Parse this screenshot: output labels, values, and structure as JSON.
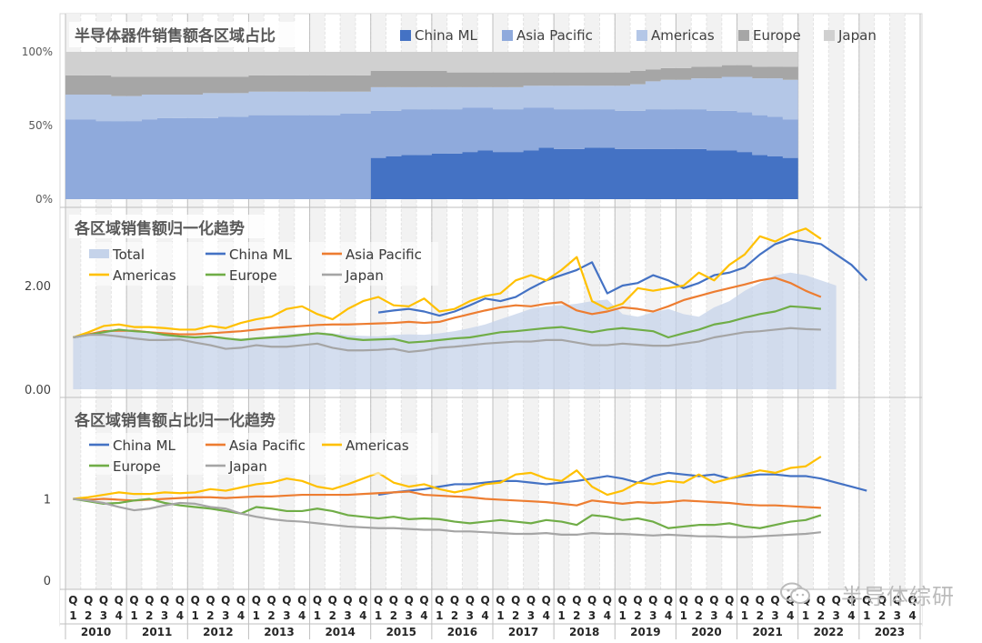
{
  "watermark": "半导体综研",
  "chart_data": [
    {
      "type": "area",
      "stacked": true,
      "percent": true,
      "title": "半导体器件销售额各区域占比",
      "yticks": [
        "0%",
        "50%",
        "100%"
      ],
      "ylim": [
        0,
        100
      ],
      "legend_position": "top-right",
      "series": [
        {
          "name": "China ML",
          "color": "#4472c4",
          "values": [
            0,
            0,
            0,
            0,
            0,
            0,
            0,
            0,
            0,
            0,
            0,
            0,
            0,
            0,
            0,
            0,
            0,
            0,
            0,
            0,
            28,
            29,
            30,
            30,
            31,
            31,
            32,
            33,
            32,
            32,
            33,
            35,
            34,
            34,
            35,
            35,
            34,
            34,
            34,
            34,
            34,
            34,
            33,
            33,
            32,
            30,
            29,
            28
          ]
        },
        {
          "name": "Asia Pacific",
          "color": "#8faadc",
          "values": [
            54,
            54,
            53,
            53,
            53,
            54,
            55,
            55,
            55,
            55,
            56,
            56,
            57,
            57,
            57,
            57,
            57,
            57,
            58,
            58,
            32,
            31,
            31,
            31,
            30,
            30,
            30,
            29,
            29,
            29,
            29,
            27,
            27,
            27,
            26,
            26,
            26,
            26,
            27,
            27,
            27,
            27,
            27,
            27,
            27,
            27,
            27,
            26
          ]
        },
        {
          "name": "Americas",
          "color": "#b4c7e7",
          "values": [
            17,
            17,
            18,
            17,
            17,
            17,
            16,
            16,
            16,
            17,
            16,
            16,
            16,
            16,
            16,
            16,
            16,
            16,
            15,
            15,
            16,
            16,
            15,
            15,
            15,
            15,
            14,
            14,
            15,
            15,
            15,
            15,
            16,
            16,
            16,
            16,
            17,
            18,
            19,
            20,
            20,
            21,
            22,
            23,
            24,
            25,
            26,
            27
          ]
        },
        {
          "name": "Europe",
          "color": "#a6a6a6",
          "values": [
            13,
            13,
            13,
            13,
            13,
            12,
            12,
            12,
            12,
            11,
            11,
            11,
            11,
            11,
            11,
            11,
            11,
            11,
            11,
            11,
            11,
            11,
            11,
            11,
            11,
            10,
            10,
            10,
            10,
            10,
            9,
            9,
            9,
            9,
            9,
            9,
            9,
            9,
            8,
            8,
            8,
            8,
            8,
            8,
            8,
            8,
            8,
            9
          ]
        },
        {
          "name": "Japan",
          "color": "#d0d0d0",
          "values": [
            16,
            16,
            16,
            17,
            17,
            17,
            17,
            17,
            17,
            17,
            17,
            17,
            16,
            16,
            16,
            16,
            16,
            16,
            16,
            16,
            13,
            13,
            13,
            13,
            13,
            14,
            14,
            14,
            14,
            14,
            14,
            14,
            14,
            14,
            14,
            14,
            14,
            13,
            12,
            11,
            11,
            10,
            10,
            9,
            9,
            10,
            10,
            10
          ]
        }
      ]
    },
    {
      "type": "line",
      "title": "各区域销售额归一化趋势",
      "yticks": [
        "0.00",
        "2.00"
      ],
      "ylim": [
        0,
        3.0
      ],
      "legend_position": "top-left",
      "series": [
        {
          "name": "Total",
          "color": "#c5d3ea",
          "style": "area",
          "values": [
            1.0,
            1.06,
            1.12,
            1.13,
            1.1,
            1.08,
            1.05,
            1.04,
            1.02,
            1.01,
            0.99,
            0.98,
            1.0,
            1.03,
            1.06,
            1.08,
            1.1,
            1.08,
            1.04,
            1.03,
            1.02,
            1.05,
            1.06,
            1.05,
            1.08,
            1.12,
            1.18,
            1.25,
            1.35,
            1.45,
            1.55,
            1.6,
            1.62,
            1.65,
            1.7,
            1.73,
            1.45,
            1.4,
            1.48,
            1.55,
            1.45,
            1.4,
            1.58,
            1.7,
            1.9,
            2.05,
            2.2,
            2.25,
            2.2,
            2.1,
            2.0
          ]
        },
        {
          "name": "China ML",
          "color": "#4472c4",
          "start_index": 20,
          "values": [
            1.48,
            1.52,
            1.55,
            1.5,
            1.42,
            1.5,
            1.62,
            1.75,
            1.7,
            1.78,
            1.95,
            2.1,
            2.2,
            2.3,
            2.45,
            1.85,
            2.0,
            2.05,
            2.2,
            2.1,
            1.95,
            2.05,
            2.2,
            2.25,
            2.35,
            2.6,
            2.8,
            2.9,
            2.85,
            2.8,
            2.6,
            2.4,
            2.1
          ]
        },
        {
          "name": "Asia Pacific",
          "color": "#ed7d31",
          "values": [
            1.0,
            1.06,
            1.12,
            1.13,
            1.13,
            1.1,
            1.08,
            1.06,
            1.06,
            1.08,
            1.1,
            1.12,
            1.15,
            1.18,
            1.2,
            1.22,
            1.24,
            1.25,
            1.25,
            1.26,
            1.27,
            1.28,
            1.3,
            1.28,
            1.3,
            1.38,
            1.45,
            1.52,
            1.58,
            1.62,
            1.6,
            1.65,
            1.68,
            1.52,
            1.45,
            1.5,
            1.58,
            1.55,
            1.5,
            1.6,
            1.72,
            1.8,
            1.88,
            1.95,
            2.02,
            2.1,
            2.15,
            2.05,
            1.9,
            1.78
          ]
        },
        {
          "name": "Americas",
          "color": "#ffc000",
          "values": [
            1.0,
            1.1,
            1.22,
            1.25,
            1.2,
            1.2,
            1.18,
            1.15,
            1.15,
            1.22,
            1.18,
            1.28,
            1.35,
            1.4,
            1.55,
            1.6,
            1.45,
            1.35,
            1.55,
            1.7,
            1.78,
            1.62,
            1.6,
            1.75,
            1.5,
            1.55,
            1.7,
            1.8,
            1.85,
            2.1,
            2.2,
            2.1,
            2.3,
            2.55,
            1.7,
            1.55,
            1.65,
            1.95,
            1.9,
            1.95,
            2.0,
            2.25,
            2.1,
            2.4,
            2.6,
            2.95,
            2.85,
            3.0,
            3.1,
            2.9
          ]
        },
        {
          "name": "Europe",
          "color": "#70ad47",
          "values": [
            1.0,
            1.05,
            1.1,
            1.15,
            1.12,
            1.1,
            1.05,
            1.02,
            1.0,
            1.02,
            0.98,
            0.95,
            0.98,
            1.0,
            1.02,
            1.05,
            1.08,
            1.05,
            0.98,
            0.95,
            0.96,
            0.97,
            0.9,
            0.92,
            0.95,
            0.98,
            1.0,
            1.05,
            1.1,
            1.12,
            1.15,
            1.18,
            1.2,
            1.15,
            1.1,
            1.15,
            1.18,
            1.15,
            1.12,
            1.0,
            1.08,
            1.15,
            1.25,
            1.3,
            1.38,
            1.45,
            1.5,
            1.6,
            1.58,
            1.55
          ]
        },
        {
          "name": "Japan",
          "color": "#a5a5a5",
          "values": [
            1.0,
            1.05,
            1.05,
            1.02,
            0.98,
            0.95,
            0.95,
            0.96,
            0.9,
            0.85,
            0.78,
            0.8,
            0.85,
            0.82,
            0.82,
            0.85,
            0.88,
            0.8,
            0.75,
            0.75,
            0.76,
            0.78,
            0.72,
            0.75,
            0.8,
            0.82,
            0.85,
            0.88,
            0.9,
            0.92,
            0.92,
            0.95,
            0.95,
            0.9,
            0.85,
            0.85,
            0.88,
            0.86,
            0.84,
            0.84,
            0.88,
            0.92,
            1.0,
            1.05,
            1.1,
            1.12,
            1.15,
            1.18,
            1.16,
            1.15
          ]
        }
      ]
    },
    {
      "type": "line",
      "title": "各区域销售额占比归一化趋势",
      "yticks": [
        "0",
        "1"
      ],
      "ylim": [
        0,
        1.9
      ],
      "legend_position": "top-left",
      "series": [
        {
          "name": "China ML",
          "color": "#4472c4",
          "start_index": 20,
          "values": [
            1.05,
            1.08,
            1.1,
            1.12,
            1.15,
            1.18,
            1.18,
            1.2,
            1.22,
            1.22,
            1.2,
            1.18,
            1.2,
            1.22,
            1.25,
            1.28,
            1.25,
            1.2,
            1.28,
            1.32,
            1.3,
            1.28,
            1.3,
            1.25,
            1.28,
            1.3,
            1.3,
            1.28,
            1.28,
            1.25,
            1.2,
            1.15,
            1.1
          ]
        },
        {
          "name": "Asia Pacific",
          "color": "#ed7d31",
          "values": [
            1.0,
            0.99,
            1.0,
            0.99,
            0.98,
            0.99,
            1.0,
            1.01,
            1.02,
            1.02,
            1.01,
            1.02,
            1.03,
            1.03,
            1.04,
            1.05,
            1.05,
            1.05,
            1.05,
            1.06,
            1.07,
            1.08,
            1.09,
            1.05,
            1.04,
            1.03,
            1.02,
            1.0,
            0.99,
            0.98,
            0.97,
            0.96,
            0.94,
            0.92,
            0.98,
            0.96,
            0.94,
            0.96,
            0.95,
            0.96,
            0.98,
            0.97,
            0.96,
            0.95,
            0.93,
            0.92,
            0.92,
            0.91,
            0.9,
            0.89
          ]
        },
        {
          "name": "Americas",
          "color": "#ffc000",
          "values": [
            1.0,
            1.02,
            1.05,
            1.08,
            1.06,
            1.06,
            1.08,
            1.07,
            1.08,
            1.12,
            1.1,
            1.14,
            1.18,
            1.2,
            1.25,
            1.22,
            1.15,
            1.12,
            1.18,
            1.25,
            1.32,
            1.2,
            1.15,
            1.18,
            1.12,
            1.08,
            1.12,
            1.18,
            1.2,
            1.3,
            1.32,
            1.25,
            1.22,
            1.35,
            1.15,
            1.05,
            1.1,
            1.2,
            1.18,
            1.22,
            1.2,
            1.3,
            1.2,
            1.25,
            1.3,
            1.35,
            1.32,
            1.38,
            1.4,
            1.52
          ]
        },
        {
          "name": "Europe",
          "color": "#70ad47",
          "values": [
            1.0,
            0.97,
            0.94,
            0.95,
            0.98,
            1.0,
            0.95,
            0.92,
            0.9,
            0.88,
            0.85,
            0.82,
            0.9,
            0.88,
            0.85,
            0.85,
            0.88,
            0.85,
            0.8,
            0.78,
            0.76,
            0.78,
            0.75,
            0.76,
            0.75,
            0.72,
            0.7,
            0.72,
            0.74,
            0.72,
            0.7,
            0.74,
            0.72,
            0.68,
            0.8,
            0.78,
            0.74,
            0.76,
            0.72,
            0.64,
            0.66,
            0.68,
            0.68,
            0.7,
            0.66,
            0.64,
            0.68,
            0.72,
            0.74,
            0.8
          ]
        },
        {
          "name": "Japan",
          "color": "#a5a5a5",
          "values": [
            1.0,
            0.98,
            0.95,
            0.9,
            0.86,
            0.88,
            0.92,
            0.95,
            0.94,
            0.9,
            0.88,
            0.82,
            0.78,
            0.75,
            0.73,
            0.72,
            0.7,
            0.68,
            0.66,
            0.65,
            0.64,
            0.64,
            0.63,
            0.62,
            0.62,
            0.6,
            0.6,
            0.59,
            0.58,
            0.57,
            0.57,
            0.58,
            0.56,
            0.56,
            0.58,
            0.57,
            0.57,
            0.56,
            0.55,
            0.56,
            0.55,
            0.54,
            0.54,
            0.53,
            0.53,
            0.54,
            0.55,
            0.56,
            0.57,
            0.59
          ]
        }
      ]
    }
  ],
  "x_axis": {
    "quarters": [
      "Q1",
      "Q2",
      "Q3",
      "Q4"
    ],
    "quarter_top": "Q",
    "quarter_numbers": [
      "1",
      "2",
      "3",
      "4"
    ],
    "years": [
      "2010",
      "2011",
      "2012",
      "2013",
      "2014",
      "2015",
      "2016",
      "2017",
      "2018",
      "2019",
      "2020",
      "2021",
      "2022",
      "2023"
    ]
  }
}
